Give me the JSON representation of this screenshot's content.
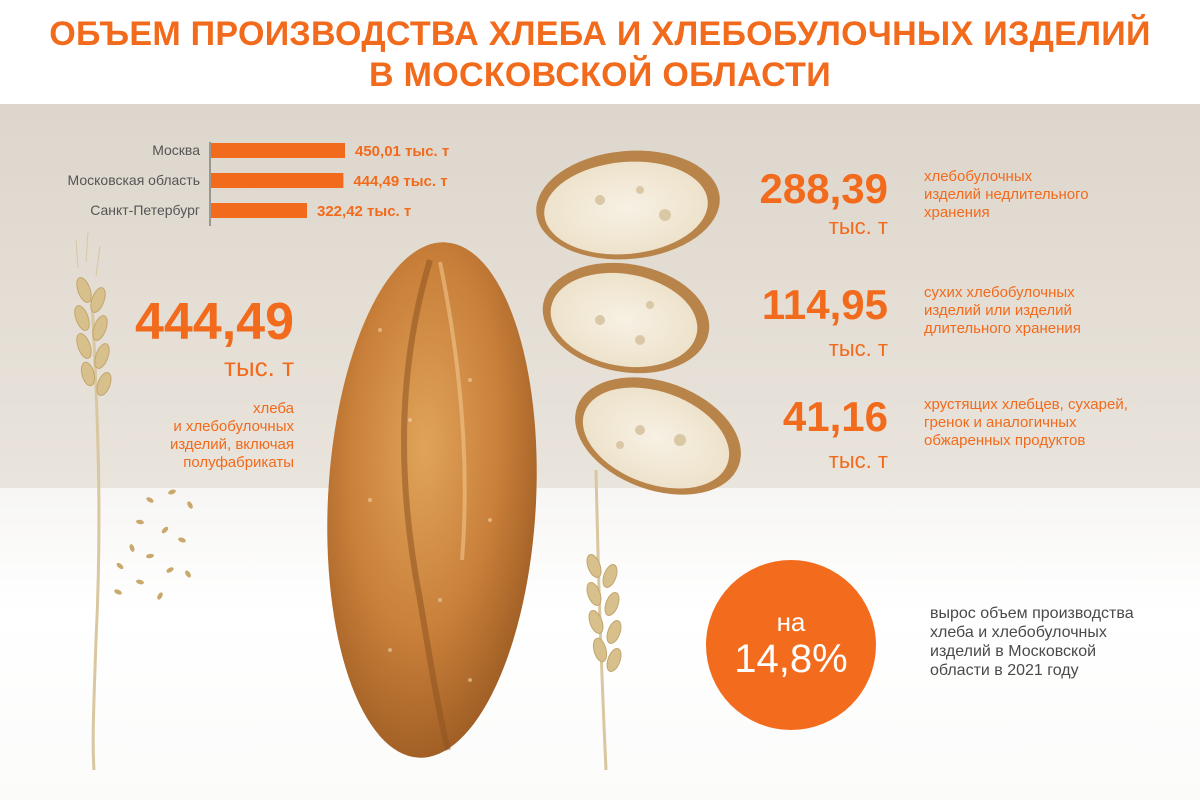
{
  "header": {
    "title_line1": "ОБЪЕМ ПРОИЗВОДСТВА ХЛЕБА И ХЛЕБОБУЛОЧНЫХ ИЗДЕЛИЙ",
    "title_line2": "В МОСКОВСКОЙ ОБЛАСТИ"
  },
  "colors": {
    "accent": "#f26a1b",
    "beige": "#e2dbd1",
    "text_gray": "#4a4a4a"
  },
  "chart_data": {
    "type": "bar",
    "orientation": "horizontal",
    "categories": [
      "Москва",
      "Московская область",
      "Санкт-Петербург"
    ],
    "values": [
      450.01,
      444.49,
      322.42
    ],
    "value_labels": [
      "450,01 тыс. т",
      "444,49 тыс. т",
      "322,42 тыс. т"
    ],
    "title": "",
    "xlabel": "",
    "ylabel": "",
    "xlim": [
      0,
      450.01
    ],
    "grid": false,
    "legend": "none"
  },
  "total": {
    "value": "444,49",
    "unit": "тыс. т",
    "desc_lines": [
      "хлеба",
      "и хлебобулочных",
      "изделий, включая",
      "полуфабрикаты"
    ]
  },
  "categories_stats": [
    {
      "value": "288,39",
      "unit": "тыс. т",
      "desc_lines": [
        "хлебобулочных",
        "изделий недлительного",
        "хранения"
      ]
    },
    {
      "value": "114,95",
      "unit": "тыс. т",
      "desc_lines": [
        "сухих хлебобулочных",
        "изделий или изделий",
        "длительного хранения"
      ]
    },
    {
      "value": "41,16",
      "unit": "тыс. т",
      "desc_lines": [
        "хрустящих хлебцев, сухарей,",
        "гренок и аналогичных",
        "обжаренных продуктов"
      ]
    }
  ],
  "growth": {
    "prefix": "на",
    "percent": "14,8%",
    "percent_value": 14.8,
    "desc_lines": [
      "вырос объем производства",
      "хлеба и хлебобулочных",
      "изделий в Московской",
      "области в 2021 году"
    ]
  },
  "illustrations": {
    "loaf": "bread-loaf-illustration",
    "slices": "bread-slices-illustration",
    "wheat": "wheat-ear-illustration"
  }
}
